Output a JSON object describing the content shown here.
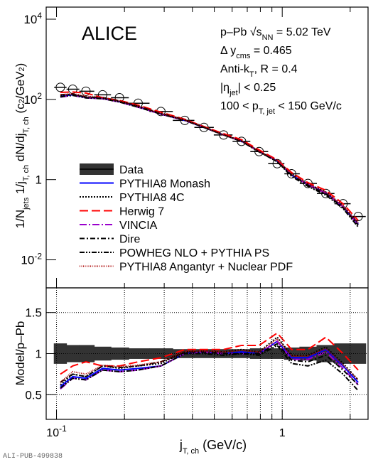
{
  "chart_data": [
    {
      "type": "line",
      "log_x": true,
      "log_y": true,
      "grid": false,
      "x": [
        0.104,
        0.118,
        0.135,
        0.16,
        0.19,
        0.23,
        0.29,
        0.37,
        0.45,
        0.55,
        0.66,
        0.79,
        0.95,
        1.1,
        1.3,
        1.56,
        1.86,
        2.17
      ],
      "xlim": [
        0.09,
        2.4
      ],
      "xticks": [
        {
          "value": 0.1,
          "label": "10^-1"
        },
        1
      ],
      "xminor": [
        0.2,
        0.3,
        0.4,
        0.5,
        0.6,
        0.7,
        0.8,
        0.9,
        2
      ],
      "ylim": [
        0.002,
        20000
      ],
      "yticks": [
        {
          "value": 0.01,
          "label": "10^-2"
        },
        1,
        {
          "value": 100,
          "label": "10^2"
        },
        {
          "value": 10000,
          "label": "10^4"
        }
      ],
      "ylabel": [
        {
          "text": "1/N"
        },
        {
          "text": "jets",
          "pos": "sub"
        },
        {
          "text": " 1/j"
        },
        {
          "text": "T, ch",
          "pos": "sub"
        },
        {
          "text": " dN/dj"
        },
        {
          "text": "T, ch",
          "pos": "sub"
        },
        {
          "text": " (c"
        },
        {
          "text": "2",
          "pos": "sup"
        },
        {
          "text": "/GeV"
        },
        {
          "text": "2",
          "pos": "sup"
        },
        {
          "text": ")"
        }
      ],
      "title": "ALICE",
      "annotations": [
        [
          {
            "text": "p–Pb √s"
          },
          {
            "text": "NN",
            "pos": "sub"
          },
          {
            "text": " = 5.02 TeV"
          }
        ],
        [
          {
            "text": "Δ y"
          },
          {
            "text": "cms",
            "pos": "sub"
          },
          {
            "text": " = 0.465"
          }
        ],
        [
          {
            "text": "Anti-k"
          },
          {
            "text": "T",
            "pos": "sub"
          },
          {
            "text": ", R = 0.4"
          }
        ],
        [
          {
            "text": "|η"
          },
          {
            "text": "jet",
            "pos": "sub"
          },
          {
            "text": "| < 0.25"
          }
        ],
        [
          {
            "text": "100 < p"
          },
          {
            "text": "T, jet",
            "pos": "sub"
          },
          {
            "text": " < 150 GeV/c"
          }
        ]
      ],
      "series": [
        {
          "name": "Data",
          "color": "#000000",
          "marker": "circle",
          "values": [
            200,
            180,
            160,
            130,
            110,
            80,
            50,
            30,
            20,
            13,
            9,
            5,
            2.5,
            1.4,
            0.8,
            0.45,
            0.25,
            0.12
          ]
        },
        {
          "name": "PYTHIA8 Monash",
          "color": "#0000ff",
          "dash": "",
          "values": [
            120,
            130,
            112,
            107,
            88,
            66,
            43,
            30,
            20,
            13,
            9.2,
            5,
            2.9,
            1.3,
            0.76,
            0.47,
            0.21,
            0.078
          ]
        },
        {
          "name": "PYTHIA8 4C",
          "color": "#000000",
          "dash": "2,2",
          "values": [
            124,
            135,
            115,
            111,
            90,
            68,
            44,
            31,
            21,
            13,
            9.5,
            5.1,
            3,
            1.4,
            0.78,
            0.49,
            0.22,
            0.082
          ]
        },
        {
          "name": "Herwig 7",
          "color": "#ff0000",
          "dash": "12,5",
          "values": [
            150,
            153,
            144,
            110,
            94,
            72,
            48,
            32,
            21,
            14,
            9.9,
            5.5,
            3.1,
            1.5,
            0.84,
            0.54,
            0.25,
            0.096
          ]
        },
        {
          "name": "VINCIA",
          "color": "#9900cc",
          "dash": "10,3,2,3",
          "values": [
            114,
            126,
            109,
            104,
            86,
            64,
            43,
            30,
            20,
            13,
            9,
            5,
            2.9,
            1.3,
            0.74,
            0.46,
            0.21,
            0.074
          ]
        },
        {
          "name": "Dire",
          "color": "#000000",
          "dash": "7,3,2,3",
          "values": [
            130,
            135,
            115,
            111,
            91,
            68,
            45,
            31,
            20,
            13,
            9,
            5,
            2.8,
            1.3,
            0.72,
            0.44,
            0.2,
            0.074
          ]
        },
        {
          "name": "POWHEG NLO + PYTHIA PS",
          "color": "#000000",
          "dash": "7,2,2,2,2,2",
          "values": [
            116,
            126,
            109,
            104,
            86,
            64,
            43,
            30,
            20,
            13,
            9,
            4.9,
            2.8,
            1.2,
            0.68,
            0.41,
            0.19,
            0.066
          ]
        },
        {
          "name": "PYTHIA8 Angantyr + Nuclear PDF",
          "color": "#aa0000",
          "dash": "1,1.5",
          "values": [
            130,
            140,
            120,
            112,
            92,
            69,
            45,
            31,
            21,
            13,
            9.4,
            5.1,
            3,
            1.4,
            0.78,
            0.48,
            0.22,
            0.082
          ]
        }
      ]
    },
    {
      "type": "line",
      "grid": true,
      "ylim": [
        0.2,
        1.8
      ],
      "yticks": [
        0.5,
        1,
        1.5
      ],
      "ylabel": "Model/p–Pb",
      "xlabel": [
        {
          "text": "j"
        },
        {
          "text": "T, ch",
          "pos": "sub"
        },
        {
          "text": " (GeV/c)"
        }
      ],
      "reference": 1,
      "uncertainty": [
        0.12,
        0.1,
        0.1,
        0.08,
        0.07,
        0.06,
        0.06,
        0.05,
        0.05,
        0.05,
        0.05,
        0.06,
        0.06,
        0.07,
        0.08,
        0.1,
        0.12,
        0.12
      ],
      "series": [
        {
          "values": [
            0.6,
            0.72,
            0.7,
            0.82,
            0.8,
            0.82,
            0.85,
            1.0,
            1.02,
            1.0,
            1.02,
            1.0,
            1.15,
            0.95,
            0.95,
            1.05,
            0.85,
            0.65
          ]
        },
        {
          "values": [
            0.62,
            0.75,
            0.72,
            0.85,
            0.82,
            0.85,
            0.88,
            1.02,
            1.03,
            1.02,
            1.05,
            1.02,
            1.2,
            0.98,
            0.98,
            1.08,
            0.88,
            0.68
          ]
        },
        {
          "values": [
            0.75,
            0.85,
            0.9,
            0.85,
            0.85,
            0.9,
            0.95,
            1.05,
            1.05,
            1.05,
            1.1,
            1.1,
            1.25,
            1.05,
            1.05,
            1.2,
            1.0,
            0.8
          ]
        },
        {
          "values": [
            0.57,
            0.7,
            0.68,
            0.8,
            0.78,
            0.8,
            0.85,
            1.0,
            1.02,
            1.0,
            1.0,
            1.0,
            1.15,
            0.93,
            0.93,
            1.02,
            0.82,
            0.62
          ]
        },
        {
          "values": [
            0.65,
            0.75,
            0.72,
            0.85,
            0.83,
            0.85,
            0.9,
            1.02,
            1.02,
            1.0,
            1.0,
            1.0,
            1.12,
            0.92,
            0.9,
            0.98,
            0.8,
            0.62
          ]
        },
        {
          "values": [
            0.58,
            0.7,
            0.68,
            0.8,
            0.78,
            0.8,
            0.85,
            1.0,
            1.0,
            0.98,
            1.0,
            0.98,
            1.1,
            0.88,
            0.85,
            0.92,
            0.75,
            0.55
          ]
        },
        {
          "values": [
            0.65,
            0.78,
            0.75,
            0.86,
            0.84,
            0.86,
            0.9,
            1.03,
            1.03,
            1.02,
            1.04,
            1.02,
            1.18,
            0.97,
            0.97,
            1.06,
            0.86,
            0.68
          ]
        }
      ]
    }
  ],
  "footer": "ALI-PUB-499838"
}
